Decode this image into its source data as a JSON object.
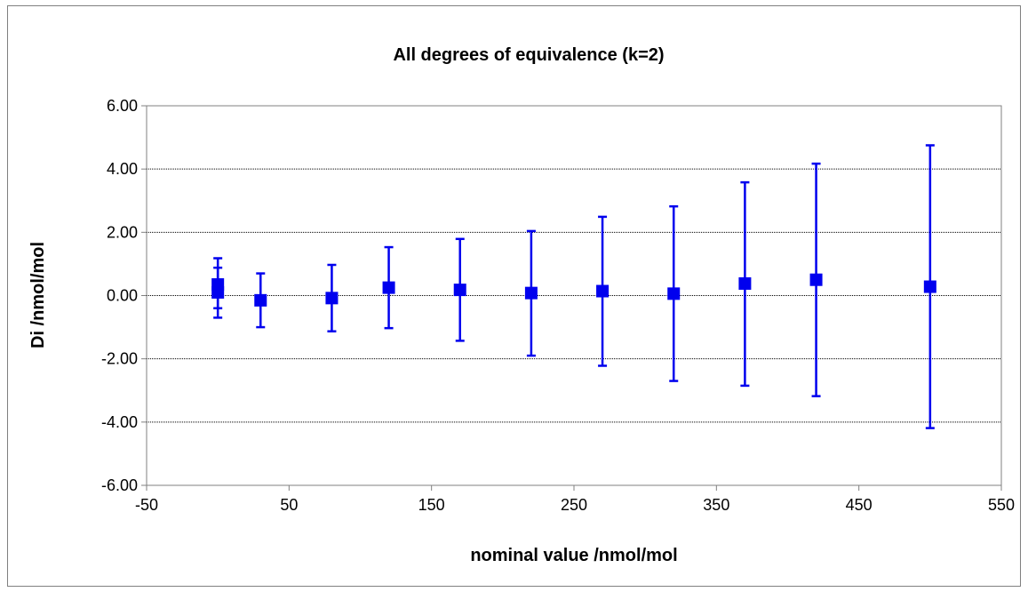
{
  "chart_data": {
    "type": "scatter",
    "title": "All degrees of equivalence (k=2)",
    "xlabel": "nominal value /nmol/mol",
    "ylabel": "Di /nmol/mol",
    "xlim": [
      -50,
      550
    ],
    "ylim": [
      -6,
      6
    ],
    "x_ticks": [
      "-50",
      "50",
      "150",
      "250",
      "350",
      "450",
      "550"
    ],
    "y_ticks": [
      "6.00",
      "4.00",
      "2.00",
      "0.00",
      "-2.00",
      "-4.00",
      "-6.00"
    ],
    "grid": "horizontal",
    "legend": "none",
    "colors": {
      "series": "#0000ee",
      "grid": "#000000",
      "axis": "#808080"
    },
    "series": [
      {
        "points": [
          {
            "x": 0,
            "y": 0.35,
            "lower": -0.4,
            "upper": 1.18
          },
          {
            "x": 0,
            "y": 0.1,
            "lower": -0.7,
            "upper": 0.88
          },
          {
            "x": 30,
            "y": -0.15,
            "lower": -1.0,
            "upper": 0.7
          },
          {
            "x": 80,
            "y": -0.08,
            "lower": -1.13,
            "upper": 0.97
          },
          {
            "x": 120,
            "y": 0.25,
            "lower": -1.03,
            "upper": 1.53
          },
          {
            "x": 170,
            "y": 0.18,
            "lower": -1.43,
            "upper": 1.79
          },
          {
            "x": 220,
            "y": 0.08,
            "lower": -1.9,
            "upper": 2.04
          },
          {
            "x": 270,
            "y": 0.14,
            "lower": -2.22,
            "upper": 2.49
          },
          {
            "x": 320,
            "y": 0.06,
            "lower": -2.7,
            "upper": 2.82
          },
          {
            "x": 370,
            "y": 0.38,
            "lower": -2.85,
            "upper": 3.58
          },
          {
            "x": 420,
            "y": 0.5,
            "lower": -3.18,
            "upper": 4.17
          },
          {
            "x": 500,
            "y": 0.28,
            "lower": -4.19,
            "upper": 4.75
          }
        ]
      }
    ]
  }
}
